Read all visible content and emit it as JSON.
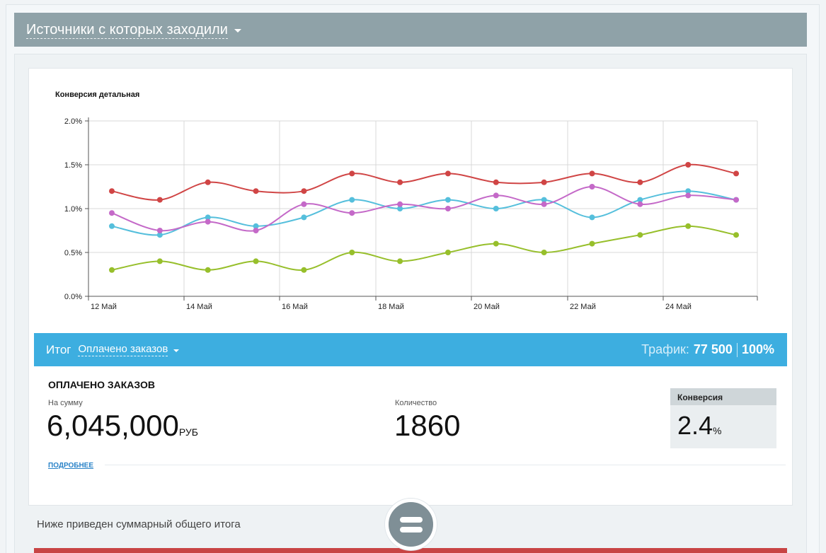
{
  "header": {
    "title": "Источники с которых заходили"
  },
  "chart_data": {
    "type": "line",
    "title": "Конверсия детальная",
    "xlabel": "",
    "ylabel": "",
    "x": [
      "12 Май",
      "13 Май",
      "14 Май",
      "15 Май",
      "16 Май",
      "17 Май",
      "18 Май",
      "19 Май",
      "20 Май",
      "21 Май",
      "22 Май",
      "23 Май",
      "24 Май",
      "25 Май"
    ],
    "x_tick_labels": [
      "12 Май",
      "14 Май",
      "16 Май",
      "18 Май",
      "20 Май",
      "22 Май",
      "24 Май"
    ],
    "y_tick_labels": [
      "0.0%",
      "0.5%",
      "1.0%",
      "1.5%",
      "2.0%"
    ],
    "ylim": [
      0,
      2.0
    ],
    "grid": true,
    "legend": "none",
    "series": [
      {
        "color": "#d04545",
        "values": [
          1.2,
          1.1,
          1.3,
          1.2,
          1.2,
          1.4,
          1.3,
          1.4,
          1.3,
          1.3,
          1.4,
          1.3,
          1.5,
          1.4
        ]
      },
      {
        "color": "#55bfdc",
        "values": [
          0.8,
          0.7,
          0.9,
          0.8,
          0.9,
          1.1,
          1.0,
          1.1,
          1.0,
          1.1,
          0.9,
          1.1,
          1.2,
          1.1
        ]
      },
      {
        "color": "#c469c8",
        "values": [
          0.95,
          0.75,
          0.85,
          0.75,
          1.05,
          0.95,
          1.05,
          1.0,
          1.15,
          1.05,
          1.25,
          1.05,
          1.15,
          1.1
        ]
      },
      {
        "color": "#97bf2b",
        "values": [
          0.3,
          0.4,
          0.3,
          0.4,
          0.3,
          0.5,
          0.4,
          0.5,
          0.6,
          0.5,
          0.6,
          0.7,
          0.8,
          0.7
        ]
      }
    ]
  },
  "total": {
    "label": "Итог",
    "select_value": "Оплачено заказов",
    "traffic_label": "Трафик:",
    "traffic_value": "77 500",
    "traffic_percent": "100%"
  },
  "orders": {
    "title": "ОПЛАЧЕНО ЗАКАЗОВ",
    "sum_label": "На сумму",
    "sum_value": "6,045,000",
    "sum_unit": "РУБ",
    "qty_label": "Количество",
    "qty_value": "1860",
    "conversion_label": "Конверсия",
    "conversion_value": "2.4",
    "conversion_unit": "%",
    "more_link": "ПОДРОБНЕЕ"
  },
  "summary": {
    "text": "Ниже приведен суммарный общего итога"
  },
  "colors": {
    "header": "#8fa2a8",
    "total_bar": "#3daee0",
    "red_bar": "#c84444"
  },
  "icons": {
    "equal_button": "equals-icon",
    "header_caret": "caret-down-icon"
  }
}
